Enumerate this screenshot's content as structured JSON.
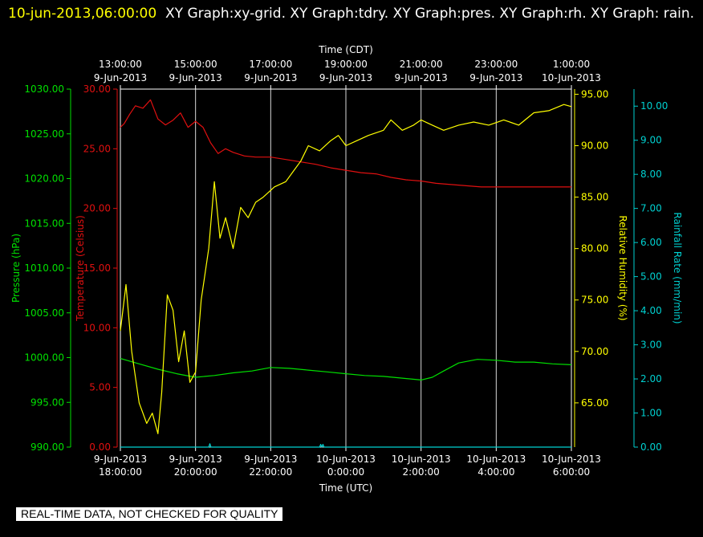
{
  "header": {
    "timestamp": "10-jun-2013,06:00:00",
    "graphs": "XY Graph:xy-grid.  XY Graph:tdry.  XY Graph:pres.  XY Graph:rh.  XY Graph: rain."
  },
  "footer": {
    "warning": "REAL-TIME DATA, NOT CHECKED FOR QUALITY"
  },
  "colors": {
    "pressure": "#00e000",
    "temperature": "#e01010",
    "humidity": "#ffff00",
    "rain": "#00d0d0",
    "grid": "#ffffff"
  },
  "chart_data": {
    "type": "line",
    "x_range_utc_hours": [
      18,
      30
    ],
    "top_axis": {
      "label": "Time (CDT)",
      "ticks": [
        {
          "x": 18,
          "time": "13:00:00",
          "date": "9-Jun-2013"
        },
        {
          "x": 20,
          "time": "15:00:00",
          "date": "9-Jun-2013"
        },
        {
          "x": 22,
          "time": "17:00:00",
          "date": "9-Jun-2013"
        },
        {
          "x": 24,
          "time": "19:00:00",
          "date": "9-Jun-2013"
        },
        {
          "x": 26,
          "time": "21:00:00",
          "date": "9-Jun-2013"
        },
        {
          "x": 28,
          "time": "23:00:00",
          "date": "9-Jun-2013"
        },
        {
          "x": 30,
          "time": "1:00:00",
          "date": "10-Jun-2013"
        }
      ]
    },
    "bottom_axis": {
      "label": "Time (UTC)",
      "ticks": [
        {
          "x": 18,
          "date": "9-Jun-2013",
          "time": "18:00:00"
        },
        {
          "x": 20,
          "date": "9-Jun-2013",
          "time": "20:00:00"
        },
        {
          "x": 22,
          "date": "9-Jun-2013",
          "time": "22:00:00"
        },
        {
          "x": 24,
          "date": "10-Jun-2013",
          "time": "0:00:00"
        },
        {
          "x": 26,
          "date": "10-Jun-2013",
          "time": "2:00:00"
        },
        {
          "x": 28,
          "date": "10-Jun-2013",
          "time": "4:00:00"
        },
        {
          "x": 30,
          "date": "10-Jun-2013",
          "time": "6:00:00"
        }
      ]
    },
    "axes": {
      "pressure": {
        "label": "Pressure (hPa)",
        "range": [
          990,
          1030
        ],
        "ticks": [
          "990.00",
          "995.00",
          "1000.00",
          "1005.00",
          "1010.00",
          "1015.00",
          "1020.00",
          "1025.00",
          "1030.00"
        ]
      },
      "temperature": {
        "label": "Temperature (Celsius)",
        "range": [
          0,
          30
        ],
        "ticks": [
          "0.00",
          "5.00",
          "10.00",
          "15.00",
          "20.00",
          "25.00",
          "30.00"
        ]
      },
      "humidity": {
        "label": "Relative Humidity (%)",
        "range": [
          60.7,
          95.5
        ],
        "ticks": [
          "65.00",
          "70.00",
          "75.00",
          "80.00",
          "85.00",
          "90.00",
          "95.00"
        ]
      },
      "rain": {
        "label": "Rainfall Rate (mm/min)",
        "range": [
          0,
          10.5
        ],
        "ticks": [
          "0.00",
          "1.00",
          "2.00",
          "3.00",
          "4.00",
          "5.00",
          "6.00",
          "7.00",
          "8.00",
          "9.00",
          "10.00"
        ]
      }
    },
    "series": [
      {
        "name": "tdry",
        "axis": "temperature",
        "x": [
          18,
          18.1,
          18.25,
          18.4,
          18.6,
          18.8,
          19,
          19.2,
          19.4,
          19.6,
          19.8,
          20,
          20.2,
          20.4,
          20.6,
          20.8,
          21,
          21.3,
          21.6,
          22,
          22.4,
          22.8,
          23.2,
          23.6,
          24,
          24.4,
          24.8,
          25.2,
          25.6,
          26,
          26.4,
          26.8,
          27.2,
          27.6,
          28,
          28.4,
          28.8,
          29.2,
          29.6,
          30
        ],
        "values": [
          26.8,
          27.1,
          27.9,
          28.6,
          28.4,
          29.1,
          27.5,
          27.0,
          27.4,
          28.0,
          26.8,
          27.3,
          26.8,
          25.5,
          24.6,
          25.0,
          24.7,
          24.4,
          24.3,
          24.3,
          24.1,
          23.9,
          23.7,
          23.4,
          23.2,
          23.0,
          22.9,
          22.6,
          22.4,
          22.3,
          22.1,
          22.0,
          21.9,
          21.8,
          21.8,
          21.8,
          21.8,
          21.8,
          21.8,
          21.8
        ]
      },
      {
        "name": "pres",
        "axis": "pressure",
        "x": [
          18,
          18.5,
          19,
          19.5,
          20,
          20.5,
          21,
          21.5,
          22,
          22.5,
          23,
          23.5,
          24,
          24.5,
          25,
          25.5,
          26,
          26.3,
          26.6,
          27,
          27.5,
          28,
          28.5,
          29,
          29.5,
          30
        ],
        "values": [
          999.9,
          999.3,
          998.7,
          998.2,
          997.8,
          998.0,
          998.3,
          998.5,
          998.9,
          998.8,
          998.6,
          998.4,
          998.2,
          998.0,
          997.9,
          997.7,
          997.5,
          997.8,
          998.5,
          999.4,
          999.8,
          999.7,
          999.5,
          999.5,
          999.3,
          999.2
        ]
      },
      {
        "name": "rh",
        "axis": "humidity",
        "x": [
          18,
          18.15,
          18.3,
          18.5,
          18.7,
          18.85,
          19.0,
          19.1,
          19.25,
          19.4,
          19.55,
          19.7,
          19.85,
          20.0,
          20.15,
          20.35,
          20.5,
          20.65,
          20.8,
          21.0,
          21.2,
          21.4,
          21.6,
          21.8,
          22.1,
          22.4,
          22.6,
          22.8,
          23.0,
          23.3,
          23.6,
          23.8,
          24.0,
          24.3,
          24.6,
          25.0,
          25.2,
          25.5,
          25.8,
          26.0,
          26.3,
          26.6,
          27.0,
          27.4,
          27.8,
          28.2,
          28.6,
          29.0,
          29.4,
          29.8,
          30.0
        ],
        "values": [
          72,
          76.5,
          70,
          65,
          63,
          64,
          62,
          66,
          75.5,
          74,
          69,
          72,
          67,
          68,
          75,
          80,
          86.5,
          81,
          83,
          80,
          84,
          83,
          84.5,
          85,
          86,
          86.5,
          87.5,
          88.5,
          90,
          89.5,
          90.5,
          91,
          90,
          90.5,
          91,
          91.5,
          92.5,
          91.5,
          92,
          92.5,
          92,
          91.5,
          92,
          92.3,
          92,
          92.5,
          92,
          93.2,
          93.4,
          94,
          93.8
        ]
      },
      {
        "name": "rain",
        "axis": "rain",
        "x": [
          18,
          20.35,
          20.38,
          20.41,
          22,
          23.3,
          23.33,
          23.36,
          23.39,
          23.42,
          23.45,
          24,
          26,
          28,
          30
        ],
        "values": [
          0,
          0,
          0.1,
          0,
          0,
          0,
          0.08,
          0,
          0.08,
          0,
          0,
          0,
          0,
          0,
          0
        ]
      }
    ],
    "legend": "none",
    "grid": "vertical lines at 2-hour intervals"
  }
}
